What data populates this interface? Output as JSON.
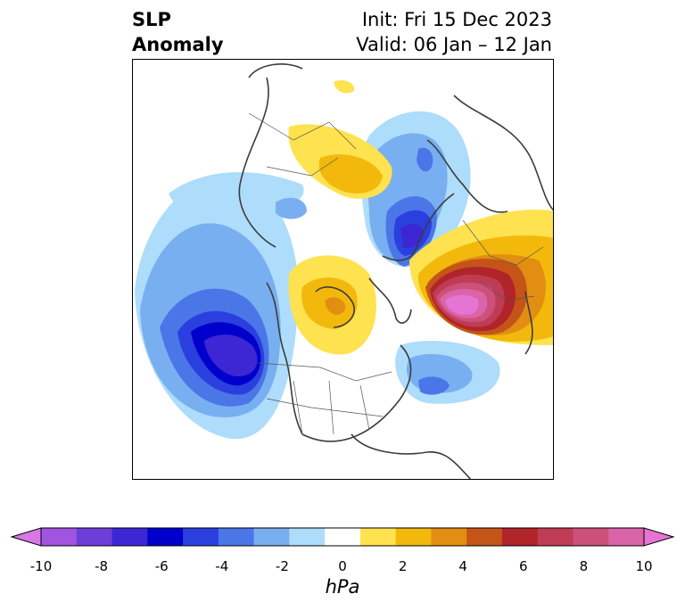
{
  "title": {
    "line1": "SLP",
    "line2": "Anomaly",
    "init": "Init: Fri 15 Dec 2023",
    "valid": "Valid: 06 Jan – 12 Jan"
  },
  "colorbar": {
    "unit": "hPa",
    "tick_labels": [
      "-10",
      "-8",
      "-6",
      "-4",
      "-2",
      "0",
      "2",
      "4",
      "6",
      "8",
      "10"
    ],
    "colors": [
      "#d977e7",
      "#a154e0",
      "#6e3ed8",
      "#3d27d4",
      "#0000cd",
      "#2b3fde",
      "#4a76e8",
      "#78aff0",
      "#aedcfb",
      "#ffffff",
      "#ffe24f",
      "#f2b90c",
      "#e18e12",
      "#c45418",
      "#b0242a",
      "#bf3c55",
      "#cc507a",
      "#da64a8",
      "#e674d5"
    ],
    "range": [
      -10,
      10
    ],
    "extend": "both"
  },
  "map": {
    "projection": "north-polar-stereographic",
    "region": "Northern Hemisphere"
  }
}
